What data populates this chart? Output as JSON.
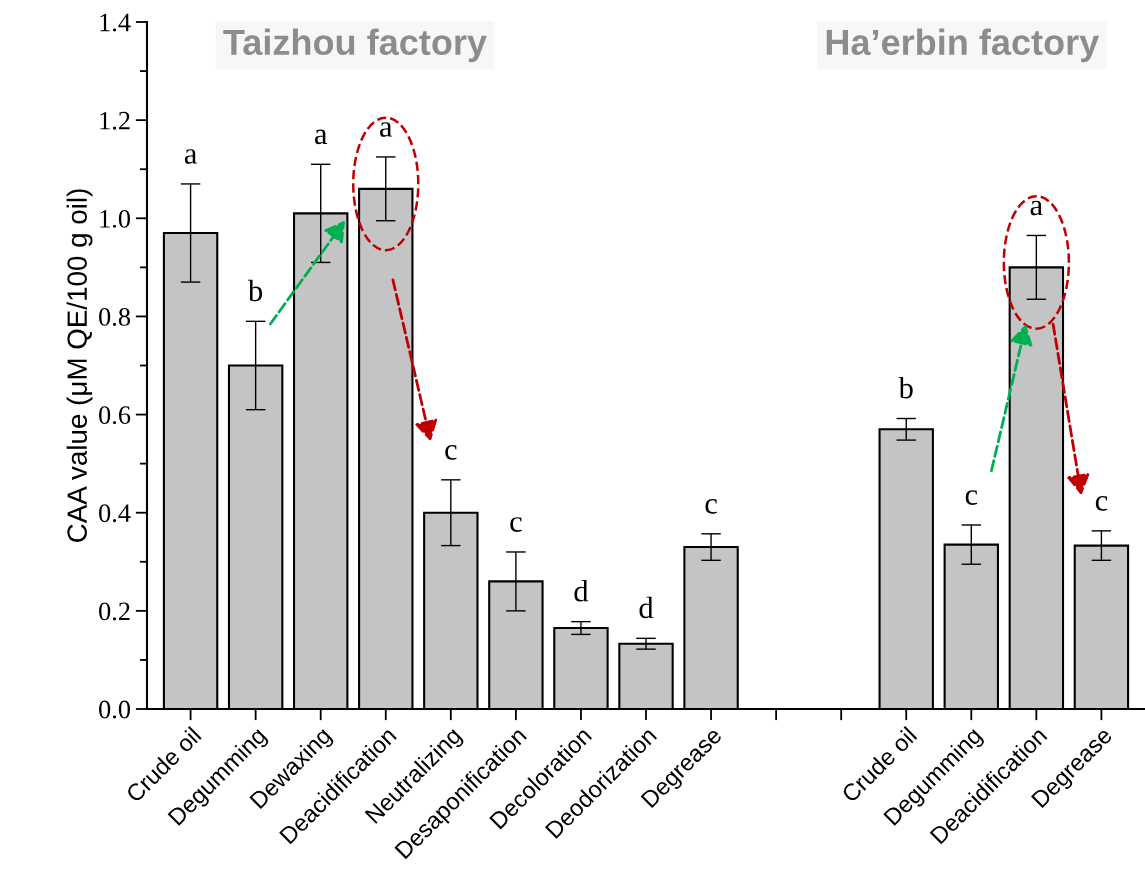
{
  "chart_data": {
    "type": "bar",
    "ylabel": "CAA value (μM QE/100 g oil)",
    "annotations": [
      "Taizhou factory",
      "Ha’erbin factory"
    ],
    "categories": [
      "Crude oil",
      "Degumming",
      "Dewaxing",
      "Deacidification",
      "Neutralizing",
      "Desaponification",
      "Decoloration",
      "Deodorization",
      "Degrease",
      null,
      null,
      "Crude oil",
      "Degumming",
      "Deacidification",
      "Degrease"
    ],
    "values": [
      0.97,
      0.7,
      1.01,
      1.06,
      0.4,
      0.26,
      0.165,
      0.133,
      0.33,
      null,
      null,
      0.57,
      0.335,
      0.9,
      0.333
    ],
    "errors": [
      0.1,
      0.09,
      0.1,
      0.065,
      0.067,
      0.06,
      0.013,
      0.011,
      0.027,
      null,
      null,
      0.022,
      0.04,
      0.065,
      0.03
    ],
    "value_labels": [
      "a",
      "b",
      "a",
      "a",
      "c",
      "c",
      "d",
      "d",
      "c",
      null,
      null,
      "b",
      "c",
      "a",
      "c"
    ],
    "color": "#c4c4c4",
    "ylim": [
      0,
      1.4
    ],
    "yticks": [
      {
        "value": 0,
        "label": "0.0"
      },
      0.2,
      0.4,
      0.6,
      0.8,
      {
        "value": 1,
        "label": "1.0"
      },
      1.2,
      1.4
    ],
    "grid": false
  }
}
